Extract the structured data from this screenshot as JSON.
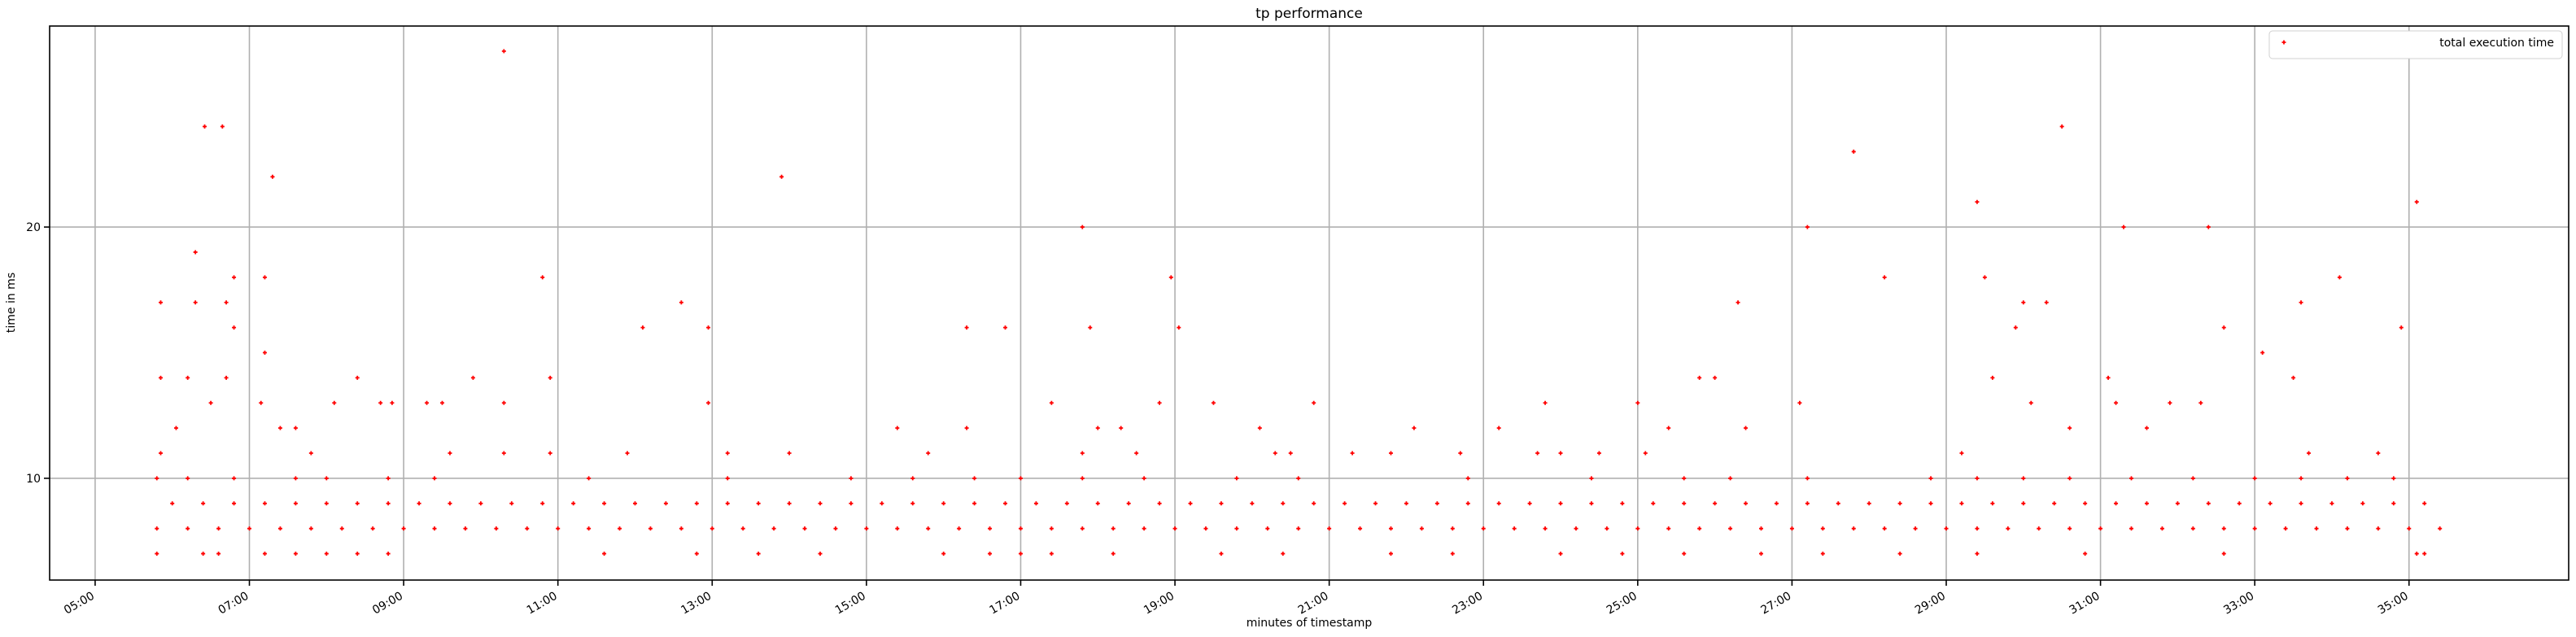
{
  "chart_data": {
    "type": "scatter",
    "title": "tp performance",
    "x_label": "minutes of timestamp",
    "y_label": "time in ms",
    "xlim": [
      4.41,
      37.07
    ],
    "ylim": [
      5.95,
      28.0
    ],
    "xticks": [
      {
        "value": 5,
        "label": "05:00"
      },
      {
        "value": 7,
        "label": "07:00"
      },
      {
        "value": 9,
        "label": "09:00"
      },
      {
        "value": 11,
        "label": "11:00"
      },
      {
        "value": 13,
        "label": "13:00"
      },
      {
        "value": 15,
        "label": "15:00"
      },
      {
        "value": 17,
        "label": "17:00"
      },
      {
        "value": 19,
        "label": "19:00"
      },
      {
        "value": 21,
        "label": "21:00"
      },
      {
        "value": 23,
        "label": "23:00"
      },
      {
        "value": 25,
        "label": "25:00"
      },
      {
        "value": 27,
        "label": "27:00"
      },
      {
        "value": 29,
        "label": "29:00"
      },
      {
        "value": 31,
        "label": "31:00"
      },
      {
        "value": 33,
        "label": "33:00"
      },
      {
        "value": 35,
        "label": "35:00"
      }
    ],
    "yticks": [
      10,
      20
    ],
    "grid": true,
    "legend": "upper right",
    "series": [
      {
        "name": "total execution time",
        "color": "#ff0000",
        "x": [
          5.8,
          6.2,
          6.6,
          7.0,
          7.4,
          7.8,
          8.2,
          8.6,
          9.0,
          9.4,
          9.8,
          10.2,
          10.6,
          11.0,
          11.4,
          11.8,
          12.2,
          12.6,
          13.0,
          13.4,
          13.8,
          14.2,
          14.6,
          15.0,
          15.4,
          15.8,
          16.2,
          16.6,
          17.0,
          17.4,
          17.8,
          18.2,
          18.6,
          19.0,
          19.4,
          19.8,
          20.2,
          20.6,
          21.0,
          21.4,
          21.8,
          22.2,
          22.6,
          23.0,
          23.4,
          23.8,
          24.2,
          24.6,
          25.0,
          25.4,
          25.8,
          26.2,
          26.6,
          27.0,
          27.4,
          27.8,
          28.2,
          28.6,
          29.0,
          29.4,
          29.8,
          30.2,
          30.6,
          31.0,
          31.4,
          31.8,
          32.2,
          32.6,
          33.0,
          33.4,
          33.8,
          34.2,
          34.6,
          35.0,
          35.4,
          6.0,
          6.4,
          6.8,
          7.2,
          7.6,
          8.0,
          8.4,
          8.8,
          9.2,
          9.6,
          10.0,
          10.4,
          10.8,
          11.2,
          11.6,
          12.0,
          12.4,
          12.8,
          13.2,
          13.6,
          14.0,
          14.4,
          14.8,
          15.2,
          15.6,
          16.0,
          16.4,
          16.8,
          17.2,
          17.6,
          18.0,
          18.4,
          18.8,
          19.2,
          19.6,
          20.0,
          20.4,
          20.8,
          21.2,
          21.6,
          22.0,
          22.4,
          22.8,
          23.2,
          23.6,
          24.0,
          24.4,
          24.8,
          25.2,
          25.6,
          26.0,
          26.4,
          26.8,
          27.2,
          27.6,
          28.0,
          28.4,
          28.8,
          29.2,
          29.6,
          30.0,
          30.4,
          30.8,
          31.2,
          31.6,
          32.0,
          32.4,
          32.8,
          33.2,
          33.6,
          34.0,
          34.4,
          34.8,
          35.2,
          5.8,
          6.4,
          6.6,
          7.2,
          7.6,
          8.0,
          8.4,
          8.8,
          11.6,
          12.8,
          13.6,
          14.4,
          16.0,
          16.6,
          17.0,
          17.4,
          18.2,
          19.6,
          20.4,
          21.8,
          22.6,
          24.0,
          24.8,
          25.6,
          26.6,
          27.4,
          28.4,
          29.4,
          30.8,
          32.6,
          35.2,
          5.8,
          6.2,
          6.8,
          7.6,
          8.0,
          8.8,
          9.4,
          11.4,
          13.2,
          14.8,
          15.6,
          16.4,
          17.0,
          17.8,
          18.6,
          19.8,
          20.6,
          22.8,
          24.4,
          25.6,
          26.2,
          27.2,
          28.8,
          29.4,
          30.0,
          30.6,
          31.4,
          32.2,
          33.0,
          33.6,
          34.2,
          34.8,
          5.85,
          5.85,
          5.85,
          6.05,
          6.2,
          6.3,
          6.3,
          6.42,
          6.5,
          6.65,
          6.7,
          6.7,
          6.8,
          6.8,
          7.15,
          7.2,
          7.2,
          7.3,
          7.4,
          7.6,
          7.8,
          8.1,
          8.4,
          8.7,
          8.85,
          9.3,
          9.5,
          9.6,
          9.9,
          10.3,
          10.3,
          10.3,
          10.8,
          10.9,
          10.9,
          11.9,
          12.1,
          12.6,
          12.95,
          12.95,
          13.2,
          13.9,
          14.0,
          15.4,
          15.8,
          16.3,
          16.3,
          16.8,
          17.4,
          17.8,
          17.8,
          17.9,
          18.0,
          18.3,
          18.5,
          18.8,
          18.95,
          19.05,
          19.5,
          20.1,
          20.3,
          20.5,
          20.8,
          21.3,
          21.8,
          22.1,
          22.7,
          23.2,
          23.7,
          23.8,
          24.0,
          24.5,
          25.0,
          25.1,
          25.4,
          25.8,
          26.0,
          26.3,
          26.4,
          27.1,
          27.2,
          27.8,
          28.2,
          29.2,
          29.4,
          29.5,
          29.6,
          29.9,
          30.0,
          30.1,
          30.3,
          30.5,
          30.6,
          31.1,
          31.2,
          31.3,
          31.6,
          31.9,
          32.3,
          32.4,
          32.6,
          33.1,
          33.5,
          33.6,
          33.7,
          34.1,
          34.6,
          34.9,
          35.1,
          35.1
        ],
        "values": [
          8,
          8,
          8,
          8,
          8,
          8,
          8,
          8,
          8,
          8,
          8,
          8,
          8,
          8,
          8,
          8,
          8,
          8,
          8,
          8,
          8,
          8,
          8,
          8,
          8,
          8,
          8,
          8,
          8,
          8,
          8,
          8,
          8,
          8,
          8,
          8,
          8,
          8,
          8,
          8,
          8,
          8,
          8,
          8,
          8,
          8,
          8,
          8,
          8,
          8,
          8,
          8,
          8,
          8,
          8,
          8,
          8,
          8,
          8,
          8,
          8,
          8,
          8,
          8,
          8,
          8,
          8,
          8,
          8,
          8,
          8,
          8,
          8,
          8,
          8,
          9,
          9,
          9,
          9,
          9,
          9,
          9,
          9,
          9,
          9,
          9,
          9,
          9,
          9,
          9,
          9,
          9,
          9,
          9,
          9,
          9,
          9,
          9,
          9,
          9,
          9,
          9,
          9,
          9,
          9,
          9,
          9,
          9,
          9,
          9,
          9,
          9,
          9,
          9,
          9,
          9,
          9,
          9,
          9,
          9,
          9,
          9,
          9,
          9,
          9,
          9,
          9,
          9,
          9,
          9,
          9,
          9,
          9,
          9,
          9,
          9,
          9,
          9,
          9,
          9,
          9,
          9,
          9,
          9,
          9,
          9,
          9,
          9,
          9,
          7,
          7,
          7,
          7,
          7,
          7,
          7,
          7,
          7,
          7,
          7,
          7,
          7,
          7,
          7,
          7,
          7,
          7,
          7,
          7,
          7,
          7,
          7,
          7,
          7,
          7,
          7,
          7,
          7,
          7,
          7,
          10,
          10,
          10,
          10,
          10,
          10,
          10,
          10,
          10,
          10,
          10,
          10,
          10,
          10,
          10,
          10,
          10,
          10,
          10,
          10,
          10,
          10,
          10,
          10,
          10,
          10,
          10,
          10,
          10,
          10,
          10,
          10,
          17,
          14,
          11,
          12,
          14,
          19,
          17,
          24,
          13,
          24,
          17,
          14,
          18,
          16,
          13,
          18,
          15,
          22,
          12,
          12,
          11,
          13,
          14,
          13,
          13,
          13,
          13,
          11,
          14,
          27,
          13,
          11,
          18,
          14,
          11,
          11,
          16,
          17,
          16,
          13,
          11,
          22,
          11,
          12,
          11,
          16,
          12,
          16,
          13,
          20,
          11,
          16,
          12,
          12,
          11,
          13,
          18,
          16,
          13,
          12,
          11,
          11,
          13,
          11,
          11,
          12,
          11,
          12,
          11,
          13,
          11,
          11,
          13,
          11,
          12,
          14,
          14,
          17,
          12,
          13,
          20,
          23,
          18,
          11,
          21,
          18,
          14,
          16,
          17,
          13,
          17,
          24,
          12,
          14,
          13,
          20,
          12,
          13,
          13,
          20,
          16,
          15,
          14,
          17,
          11,
          18,
          11,
          16,
          21,
          7
        ]
      }
    ]
  }
}
